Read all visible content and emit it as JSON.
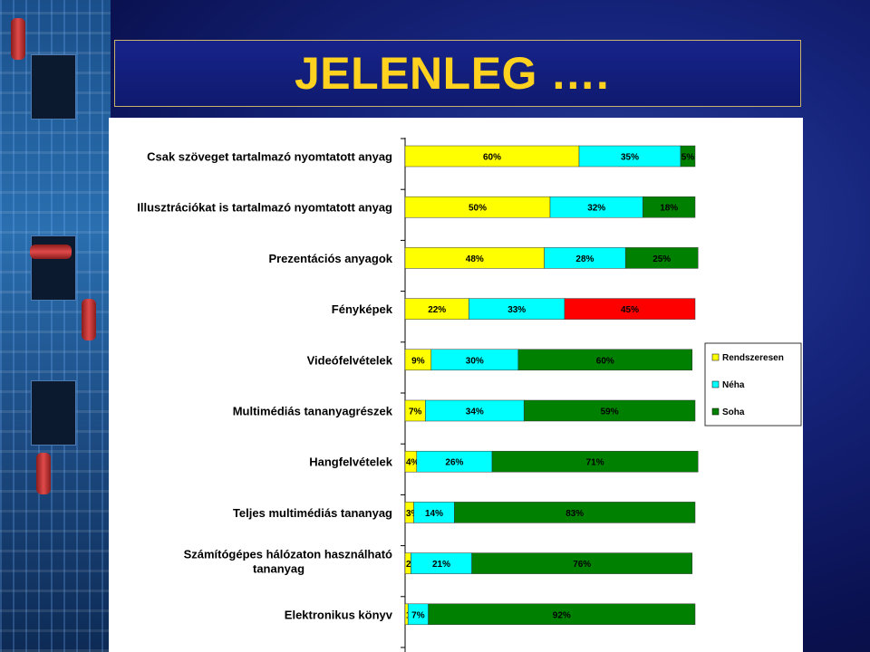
{
  "slide": {
    "title": "JELENLEG …."
  },
  "colors": {
    "Rendszeresen": "#ffff00",
    "Néha": "#00ffff",
    "Soha": "#008000",
    "Soha_fenykepek": "#ff0000"
  },
  "chart_data": {
    "type": "bar",
    "orientation": "horizontal",
    "stacked": "percent",
    "categories": [
      [
        "Csak szöveget tartalmazó nyomtatott anyag"
      ],
      [
        "Illusztrációkat is tartalmazó nyomtatott anyag"
      ],
      [
        "Prezentációs anyagok"
      ],
      [
        "Fényképek"
      ],
      [
        "Videófelvételek"
      ],
      [
        "Multimédiás tananyagrészek"
      ],
      [
        "Hangfelvételek"
      ],
      [
        "Teljes multimédiás tananyag"
      ],
      [
        "Számítógépes hálózaton használható",
        "tananyag"
      ],
      [
        "Elektronikus könyv"
      ]
    ],
    "series": [
      {
        "name": "Rendszeresen",
        "values": [
          60,
          50,
          48,
          22,
          9,
          7,
          4,
          3,
          2,
          1
        ]
      },
      {
        "name": "Néha",
        "values": [
          35,
          32,
          28,
          33,
          30,
          34,
          26,
          14,
          21,
          7
        ]
      },
      {
        "name": "Soha",
        "values": [
          5,
          18,
          25,
          45,
          60,
          59,
          71,
          83,
          76,
          92
        ]
      }
    ],
    "value_labels": [
      [
        "60%",
        "35%",
        "5%"
      ],
      [
        "50%",
        "32%",
        "18%"
      ],
      [
        "48%",
        "28%",
        "25%"
      ],
      [
        "22%",
        "33%",
        "45%"
      ],
      [
        "9%",
        "30%",
        "60%"
      ],
      [
        "7%",
        "34%",
        "59%"
      ],
      [
        "4%",
        "26%",
        "71%"
      ],
      [
        "3%",
        "14%",
        "83%"
      ],
      [
        "2%",
        "21%",
        "76%"
      ],
      [
        "1%",
        "7%",
        "92%"
      ]
    ],
    "legend": {
      "placement": "right",
      "entries": [
        "Rendszeresen",
        "Néha",
        "Soha"
      ]
    }
  }
}
